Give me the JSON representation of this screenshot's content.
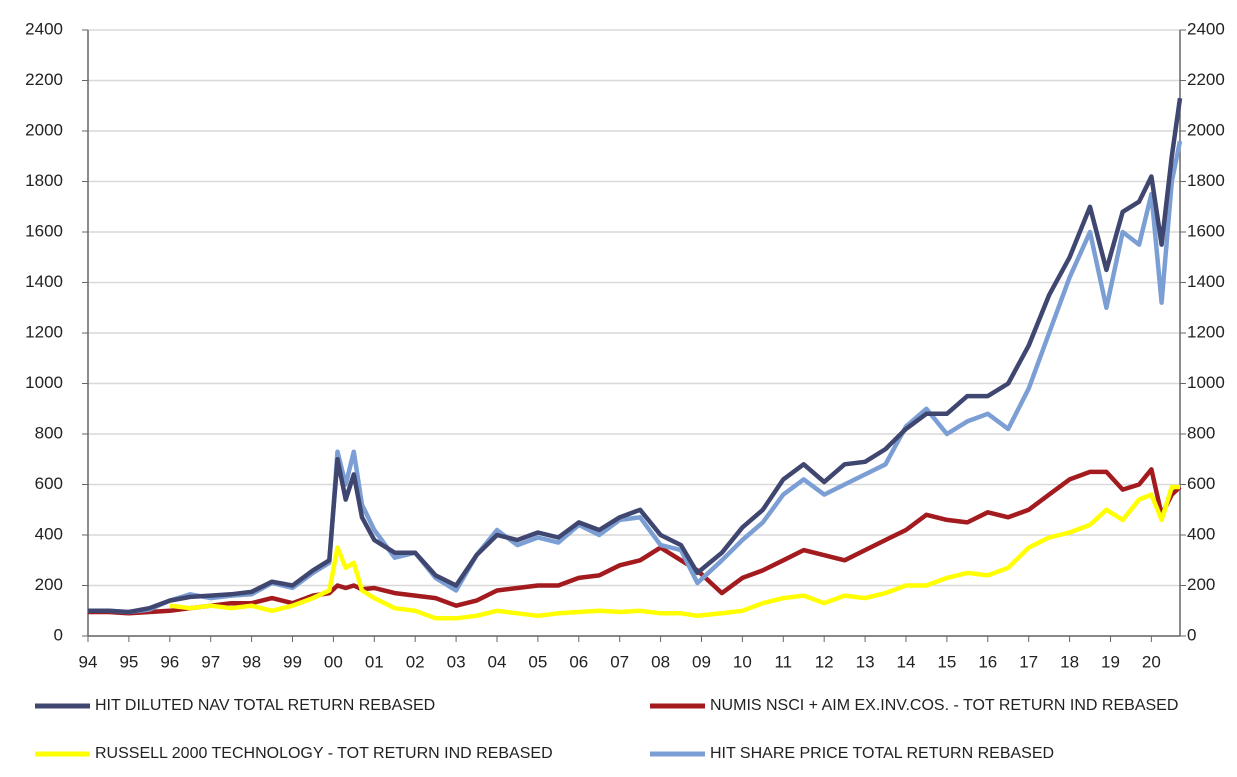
{
  "chart_data": {
    "type": "line",
    "x": [
      1994,
      1994.5,
      1995,
      1995.5,
      1996,
      1996.5,
      1997,
      1997.5,
      1998,
      1998.5,
      1999,
      1999.5,
      1999.9,
      2000.1,
      2000.3,
      2000.5,
      2000.7,
      2001,
      2001.5,
      2002,
      2002.5,
      2003,
      2003.5,
      2004,
      2004.5,
      2005,
      2005.5,
      2006,
      2006.5,
      2007,
      2007.5,
      2008,
      2008.5,
      2008.9,
      2009.5,
      2010,
      2010.5,
      2011,
      2011.5,
      2012,
      2012.5,
      2013,
      2013.5,
      2014,
      2014.5,
      2015,
      2015.5,
      2016,
      2016.5,
      2017,
      2017.5,
      2018,
      2018.5,
      2018.9,
      2019.3,
      2019.7,
      2020,
      2020.25,
      2020.5,
      2020.7
    ],
    "series": [
      {
        "name": "HIT DILUTED NAV TOTAL RETURN REBASED",
        "color": "#3f4670",
        "values": [
          100,
          100,
          95,
          110,
          140,
          155,
          160,
          165,
          175,
          215,
          200,
          260,
          300,
          700,
          540,
          640,
          470,
          380,
          330,
          330,
          240,
          200,
          320,
          400,
          380,
          410,
          390,
          450,
          420,
          470,
          500,
          400,
          360,
          250,
          330,
          430,
          500,
          620,
          680,
          610,
          680,
          690,
          740,
          820,
          880,
          880,
          950,
          950,
          1000,
          1150,
          1350,
          1500,
          1700,
          1450,
          1680,
          1720,
          1820,
          1550,
          1900,
          2130
        ]
      },
      {
        "name": "NUMIS NSCI + AIM EX.INV.COS. - TOT RETURN IND REBASED",
        "color": "#a31b1e",
        "values": [
          95,
          95,
          90,
          95,
          100,
          110,
          120,
          130,
          130,
          150,
          130,
          160,
          170,
          200,
          190,
          200,
          185,
          190,
          170,
          160,
          150,
          120,
          140,
          180,
          190,
          200,
          200,
          230,
          240,
          280,
          300,
          350,
          300,
          260,
          170,
          230,
          260,
          300,
          340,
          320,
          300,
          340,
          380,
          420,
          480,
          460,
          450,
          490,
          470,
          500,
          560,
          620,
          650,
          650,
          580,
          600,
          660,
          480,
          560,
          590
        ]
      },
      {
        "name": "RUSSELL 2000 TECHNOLOGY - TOT RETURN IND REBASED",
        "color": "#ffff00",
        "values": [
          null,
          null,
          null,
          null,
          120,
          110,
          120,
          110,
          120,
          100,
          120,
          150,
          180,
          350,
          270,
          290,
          180,
          150,
          110,
          100,
          70,
          70,
          80,
          100,
          90,
          80,
          90,
          95,
          100,
          95,
          100,
          90,
          90,
          80,
          90,
          100,
          130,
          150,
          160,
          130,
          160,
          150,
          170,
          200,
          200,
          230,
          250,
          240,
          270,
          350,
          390,
          410,
          440,
          500,
          460,
          540,
          560,
          460,
          590,
          590
        ]
      },
      {
        "name": "HIT SHARE PRICE TOTAL RETURN REBASED",
        "color": "#7b9fd4",
        "values": [
          100,
          100,
          95,
          105,
          140,
          165,
          150,
          160,
          165,
          210,
          190,
          250,
          290,
          730,
          600,
          730,
          520,
          420,
          310,
          330,
          230,
          180,
          320,
          420,
          360,
          390,
          370,
          440,
          400,
          460,
          470,
          360,
          340,
          210,
          300,
          380,
          450,
          560,
          620,
          560,
          600,
          640,
          680,
          830,
          900,
          800,
          850,
          880,
          820,
          980,
          1200,
          1420,
          1600,
          1300,
          1600,
          1550,
          1750,
          1320,
          1800,
          1960
        ]
      }
    ],
    "xlim": [
      1994,
      2020.7
    ],
    "xticks": [
      {
        "value": 1994,
        "label": "94"
      },
      {
        "value": 1995,
        "label": "95"
      },
      {
        "value": 1996,
        "label": "96"
      },
      {
        "value": 1997,
        "label": "97"
      },
      {
        "value": 1998,
        "label": "98"
      },
      {
        "value": 1999,
        "label": "99"
      },
      {
        "value": 2000,
        "label": "00"
      },
      {
        "value": 2001,
        "label": "01"
      },
      {
        "value": 2002,
        "label": "02"
      },
      {
        "value": 2003,
        "label": "03"
      },
      {
        "value": 2004,
        "label": "04"
      },
      {
        "value": 2005,
        "label": "05"
      },
      {
        "value": 2006,
        "label": "06"
      },
      {
        "value": 2007,
        "label": "07"
      },
      {
        "value": 2008,
        "label": "08"
      },
      {
        "value": 2009,
        "label": "09"
      },
      {
        "value": 2010,
        "label": "10"
      },
      {
        "value": 2011,
        "label": "11"
      },
      {
        "value": 2012,
        "label": "12"
      },
      {
        "value": 2013,
        "label": "13"
      },
      {
        "value": 2014,
        "label": "14"
      },
      {
        "value": 2015,
        "label": "15"
      },
      {
        "value": 2016,
        "label": "16"
      },
      {
        "value": 2017,
        "label": "17"
      },
      {
        "value": 2018,
        "label": "18"
      },
      {
        "value": 2019,
        "label": "19"
      },
      {
        "value": 2020,
        "label": "20"
      }
    ],
    "ylim": [
      0,
      2400
    ],
    "yticks": [
      0,
      200,
      400,
      600,
      800,
      1000,
      1200,
      1400,
      1600,
      1800,
      2000,
      2200,
      2400
    ],
    "y2lim": [
      0,
      2400
    ],
    "y2ticks": [
      0,
      200,
      400,
      600,
      800,
      1000,
      1200,
      1400,
      1600,
      1800,
      2000,
      2200,
      2400
    ],
    "grid": true
  }
}
